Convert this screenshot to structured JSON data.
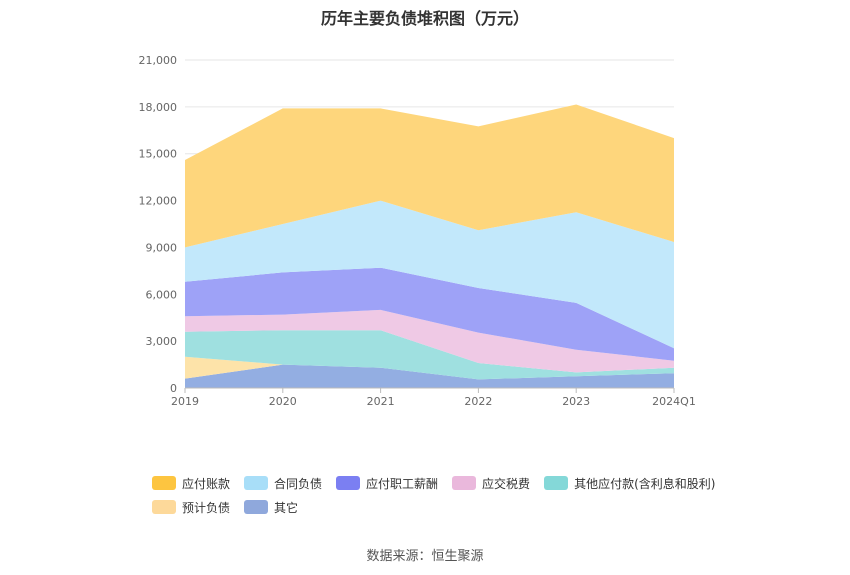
{
  "chart_data": {
    "type": "area",
    "stacked": true,
    "title": "历年主要负债堆积图（万元）",
    "categories": [
      "2019",
      "2020",
      "2021",
      "2022",
      "2023",
      "2024Q1"
    ],
    "y_ticks": [
      "0",
      "3,000",
      "6,000",
      "9,000",
      "12,000",
      "15,000",
      "18,000",
      "21,000"
    ],
    "ylim": [
      0,
      21000
    ],
    "grid": true,
    "legend_position": "bottom",
    "series": [
      {
        "name": "其它",
        "color": "#93aee2",
        "values": [
          600,
          1500,
          1300,
          550,
          750,
          950
        ]
      },
      {
        "name": "预计负债",
        "color": "#fde3a9",
        "values": [
          1400,
          0,
          0,
          0,
          0,
          0
        ]
      },
      {
        "name": "其他应付款(含利息和股利)",
        "color": "#9fe0e0",
        "values": [
          1600,
          2200,
          2400,
          1050,
          250,
          350
        ]
      },
      {
        "name": "应交税费",
        "color": "#efc9e5",
        "values": [
          1000,
          1000,
          1300,
          1950,
          1450,
          450
        ]
      },
      {
        "name": "应付职工薪酬",
        "color": "#9ea2f7",
        "values": [
          2200,
          2700,
          2700,
          2850,
          3000,
          800
        ]
      },
      {
        "name": "合同负债",
        "color": "#c2e8fb",
        "values": [
          2200,
          3100,
          4300,
          3700,
          5800,
          6800
        ]
      },
      {
        "name": "应付账款",
        "color": "#fed67c",
        "values": [
          5600,
          7400,
          5900,
          6650,
          6900,
          6650
        ]
      }
    ]
  },
  "legend": {
    "row1": [
      {
        "label": "应付账款",
        "color": "#fdc540"
      },
      {
        "label": "合同负债",
        "color": "#a8def8"
      },
      {
        "label": "应付职工薪酬",
        "color": "#7b7ff2"
      },
      {
        "label": "应交税费",
        "color": "#eab8dc"
      },
      {
        "label": "其他应付款(含利息和股利)",
        "color": "#84d8d8"
      }
    ],
    "row2": [
      {
        "label": "预计负债",
        "color": "#fdd99a"
      },
      {
        "label": "其它",
        "color": "#8fa8dc"
      }
    ]
  },
  "source": "数据来源：恒生聚源"
}
